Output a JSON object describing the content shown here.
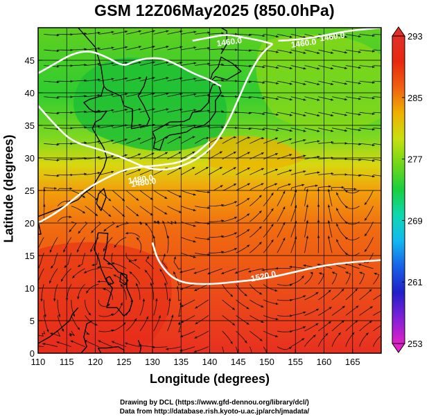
{
  "title": "GSM 12Z06May2025 (850.0hPa)",
  "x_axis": {
    "label": "Longitude (degrees)",
    "range": [
      110,
      170
    ],
    "ticks": [
      110,
      115,
      120,
      125,
      130,
      135,
      140,
      145,
      150,
      155,
      160,
      165
    ]
  },
  "y_axis": {
    "label": "Latitude  (degrees)",
    "range": [
      0,
      50
    ],
    "ticks": [
      0,
      5,
      10,
      15,
      20,
      25,
      30,
      35,
      40,
      45
    ]
  },
  "colorbar": {
    "min": 253,
    "max": 293,
    "ticks": [
      253,
      261,
      269,
      277,
      285,
      293
    ],
    "colors": [
      "#e020c8",
      "#8020d8",
      "#2020c8",
      "#1860e8",
      "#10b8f0",
      "#10d8b0",
      "#18d040",
      "#70d818",
      "#c8e010",
      "#f0b000",
      "#f06010",
      "#e82810",
      "#e03028"
    ]
  },
  "contours": [
    {
      "label": "1460.0"
    },
    {
      "label": "1460.0"
    },
    {
      "label": "1460.0"
    },
    {
      "label": "1480.0"
    },
    {
      "label": "1480.0"
    },
    {
      "label": "1520.0"
    }
  ],
  "credits": {
    "line1": "Drawing by DCL (https://www.gfd-dennou.org/library/dcl/)",
    "line2": "Data from http://database.rish.kyoto-u.ac.jp/arch/jmadata/"
  }
}
